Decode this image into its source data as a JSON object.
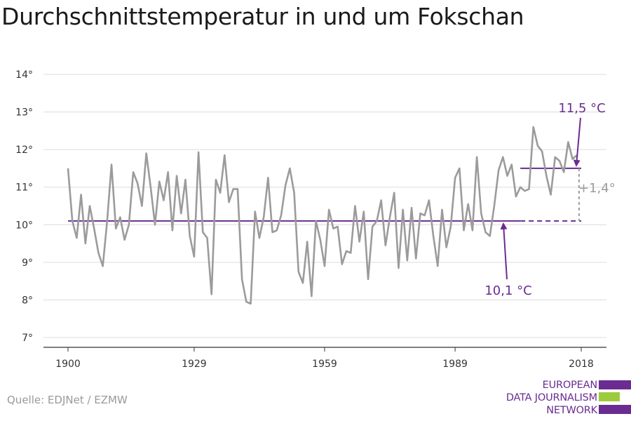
{
  "title": "Durchschnittstemperatur in und um Fokschan",
  "source": "Quelle: EDJNet / EZMW",
  "logo": {
    "lines": [
      "EUROPEAN",
      "DATA JOURNALISM",
      "NETWORK"
    ],
    "colors": {
      "purple": "#6a2c91",
      "green": "#9ccc3c"
    }
  },
  "chart_data": {
    "type": "line",
    "title": "Durchschnittstemperatur in und um Fokschan",
    "xlabel": "",
    "ylabel": "",
    "xlim": [
      1900,
      2018
    ],
    "ylim": [
      7,
      14
    ],
    "grid": true,
    "x_ticks": [
      1900,
      1929,
      1959,
      1989,
      2018
    ],
    "y_ticks": [
      7,
      8,
      9,
      10,
      11,
      12,
      13,
      14
    ],
    "y_tick_labels": [
      "7°",
      "8°",
      "9°",
      "10°",
      "11°",
      "12°",
      "13°",
      "14°"
    ],
    "colors": {
      "series": "#9b9b9b",
      "average": "#6a2c91",
      "difference": "#9b9b9b"
    },
    "series": [
      {
        "x_start": 1900,
        "values": [
          11.5,
          10.1,
          9.65,
          10.8,
          9.5,
          10.5,
          9.9,
          9.25,
          8.9,
          10.1,
          11.6,
          9.9,
          10.2,
          9.6,
          10.0,
          11.4,
          11.1,
          10.5,
          11.9,
          11.0,
          10.0,
          11.15,
          10.65,
          11.4,
          9.85,
          11.3,
          10.3,
          11.2,
          9.7,
          9.15,
          11.93,
          9.8,
          9.65,
          8.15,
          11.2,
          10.85,
          11.85,
          10.6,
          10.95,
          10.95,
          8.55,
          7.95,
          7.9,
          10.35,
          9.65,
          10.2,
          11.25,
          9.8,
          9.85,
          10.25,
          11.05,
          11.5,
          10.85,
          8.75,
          8.45,
          9.55,
          8.1,
          10.1,
          9.6,
          8.9,
          10.4,
          9.9,
          9.95,
          8.95,
          9.3,
          9.25,
          10.5,
          9.55,
          10.35,
          8.55,
          9.95,
          10.1,
          10.65,
          9.45,
          10.2,
          10.85,
          8.85,
          10.4,
          9.05,
          10.45,
          9.1,
          10.3,
          10.25,
          10.65,
          9.7,
          8.9,
          10.4,
          9.4,
          9.95,
          11.25,
          11.5,
          9.85,
          10.55,
          9.85,
          11.8,
          10.3,
          9.8,
          9.7,
          10.5,
          11.45,
          11.8,
          11.3,
          11.6,
          10.75,
          11.0,
          10.9,
          10.95,
          12.6,
          12.1,
          11.95,
          11.3,
          10.8,
          11.8,
          11.7,
          11.4,
          12.2,
          11.75,
          11.85
        ]
      }
    ],
    "reference_lines": [
      {
        "label": "10,1 °C",
        "value": 10.1,
        "from": 1900,
        "to": 2018,
        "dashed_from": 2004
      },
      {
        "label": "11,5 °C",
        "value": 11.5,
        "from": 2004,
        "to": 2018
      }
    ],
    "annotations": {
      "avg_old": "10,1 °C",
      "avg_new": "11,5 °C",
      "difference": "+1,4°"
    }
  }
}
